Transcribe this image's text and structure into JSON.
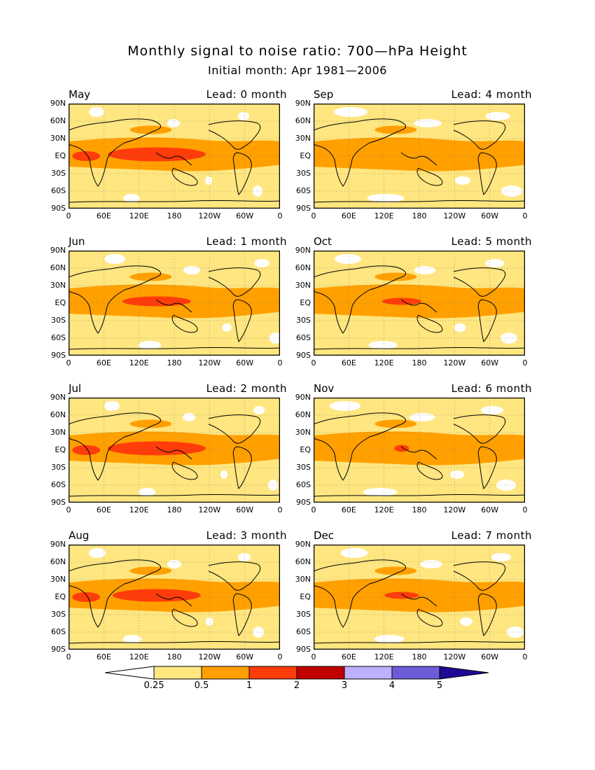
{
  "title": "Monthly signal to noise ratio: 700—hPa Height",
  "subtitle": "Initial month: Apr 1981—2006",
  "chart_data": {
    "type": "heatmap",
    "variable": "Signal to noise ratio of 700-hPa height",
    "y_ticks": [
      "90N",
      "60N",
      "30N",
      "EQ",
      "30S",
      "60S",
      "90S"
    ],
    "x_ticks": [
      "0",
      "60E",
      "120E",
      "180",
      "120W",
      "60W",
      "0"
    ],
    "panels": [
      {
        "month": "May",
        "lead": "Lead: 0 month",
        "ncore": 1.0
      },
      {
        "month": "Sep",
        "lead": "Lead: 4 month",
        "ncore": 0.0
      },
      {
        "month": "Jun",
        "lead": "Lead: 1 month",
        "ncore": 0.7
      },
      {
        "month": "Oct",
        "lead": "Lead: 5 month",
        "ncore": 0.4
      },
      {
        "month": "Jul",
        "lead": "Lead: 2 month",
        "ncore": 1.0
      },
      {
        "month": "Nov",
        "lead": "Lead: 6 month",
        "ncore": 0.15
      },
      {
        "month": "Dec",
        "lead": "Lead: 7 month",
        "ncore": 0.35
      },
      {
        "month": "Aug",
        "lead": "Lead: 3 month",
        "ncore": 0.9
      }
    ],
    "colorbar": {
      "levels": [
        "0.25",
        "0.5",
        "1",
        "2",
        "3",
        "4",
        "5"
      ],
      "colors": [
        "#ffffff",
        "#ffe680",
        "#ffa000",
        "#ff3c0a",
        "#c00000",
        "#bdb0ff",
        "#6c5cd6",
        "#1e0a96"
      ]
    }
  }
}
